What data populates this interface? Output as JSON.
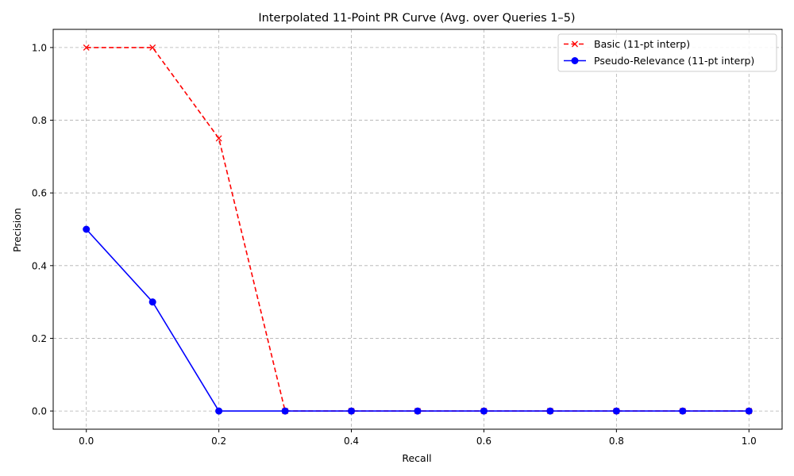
{
  "chart_data": {
    "type": "line",
    "title": "Interpolated 11-Point PR Curve (Avg. over Queries 1–5)",
    "xlabel": "Recall",
    "ylabel": "Precision",
    "xlim": [
      -0.05,
      1.05
    ],
    "ylim": [
      -0.05,
      1.05
    ],
    "xticks": [
      "0.0",
      "0.2",
      "0.4",
      "0.6",
      "0.8",
      "1.0"
    ],
    "yticks": [
      "0.0",
      "0.2",
      "0.4",
      "0.6",
      "0.8",
      "1.0"
    ],
    "grid": true,
    "legend_position": "top-right",
    "x": [
      0.0,
      0.1,
      0.2,
      0.3,
      0.4,
      0.5,
      0.6,
      0.7,
      0.8,
      0.9,
      1.0
    ],
    "series": [
      {
        "name": "Basic (11-pt interp)",
        "color": "#ff0000",
        "line_style": "dashed",
        "marker": "x",
        "values": [
          1.0,
          1.0,
          0.75,
          0.0,
          0.0,
          0.0,
          0.0,
          0.0,
          0.0,
          0.0,
          0.0
        ]
      },
      {
        "name": "Pseudo-Relevance (11-pt interp)",
        "color": "#0000ff",
        "line_style": "solid",
        "marker": "circle",
        "values": [
          0.5,
          0.3,
          0.0,
          0.0,
          0.0,
          0.0,
          0.0,
          0.0,
          0.0,
          0.0,
          0.0
        ]
      }
    ]
  }
}
